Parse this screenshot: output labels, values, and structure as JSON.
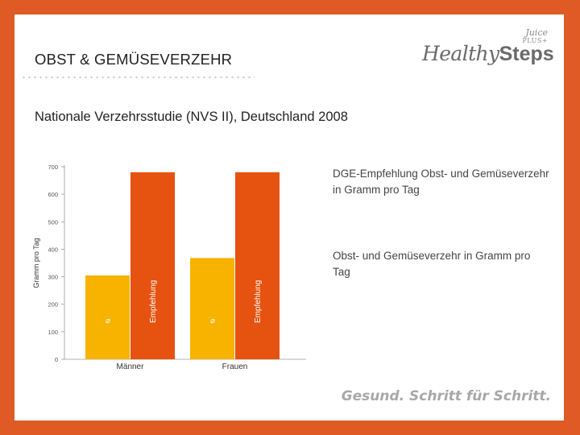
{
  "header": {
    "title": "OBST & GEMÜSEVERZEHR",
    "subtitle": "Nationale Verzehrsstudie (NVS II), Deutschland 2008"
  },
  "logo": {
    "word1": "Healthy",
    "word2": "Steps",
    "brand_top": "Juice",
    "brand_bottom": "PLUS+"
  },
  "legend": {
    "recommendation": "DGE-Empfehlung Obst- und Gemüseverzehr in Gramm pro Tag",
    "consumption": "Obst- und Gemüseverzehr in Gramm pro Tag"
  },
  "footer": {
    "slogan": "Gesund. Schritt für Schritt."
  },
  "colors": {
    "frame": "#e05a26",
    "consumption": "#f8b200",
    "recommendation": "#e6520f"
  },
  "chart_data": {
    "type": "bar",
    "title": "",
    "xlabel": "",
    "ylabel": "Gramm pro Tag",
    "ylim": [
      0,
      700
    ],
    "yticks": [
      0,
      100,
      200,
      300,
      400,
      500,
      600,
      700
    ],
    "categories": [
      "Männer",
      "Frauen"
    ],
    "series": [
      {
        "name": "Obst- und Gemüseverzehr",
        "values": [
          305,
          368
        ],
        "bar_label": "⌀"
      },
      {
        "name": "Empfehlung",
        "values": [
          680,
          680
        ],
        "bar_label": "Empfehlung"
      }
    ]
  }
}
